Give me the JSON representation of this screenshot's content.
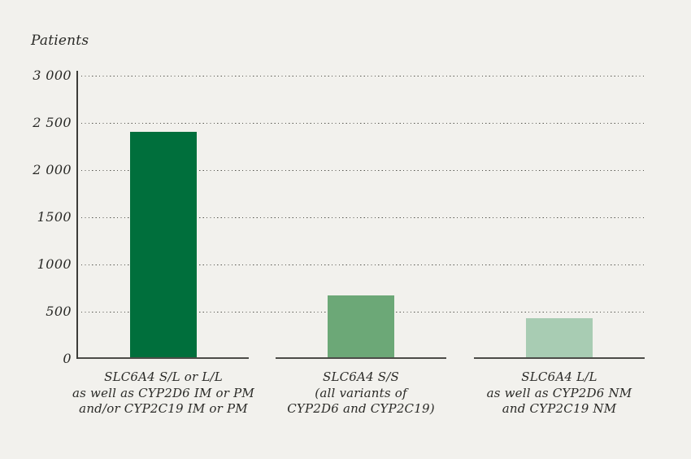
{
  "page": {
    "background_color": "#f2f1ed",
    "text_color": "#2a2a27"
  },
  "chart_data": {
    "type": "bar",
    "ylabel": "Patients",
    "categories": [
      [
        "SLC6A4 S/L or L/L",
        "as well as CYP2D6 IM or PM",
        "and/or CYP2C19 IM or PM"
      ],
      [
        "SLC6A4 S/S",
        "(all variants of",
        "CYP2D6 and CYP2C19)"
      ],
      [
        "SLC6A4 L/L",
        "as well as CYP2D6 NM",
        "and CYP2C19 NM"
      ]
    ],
    "values": [
      2400,
      660,
      420
    ],
    "bar_colors": [
      "#006f3c",
      "#6ca877",
      "#a8ccb3"
    ],
    "ylim": [
      0,
      3000
    ],
    "ytick_step": 500,
    "ytick_labels": [
      "0",
      "500",
      "1000",
      "1500",
      "2 000",
      "2 500",
      "3 000"
    ],
    "grid": "dotted horizontal gridlines, no vertical grid",
    "legend": "none",
    "axis_color": "#3c3c38",
    "gridline_color": "#55554e"
  }
}
